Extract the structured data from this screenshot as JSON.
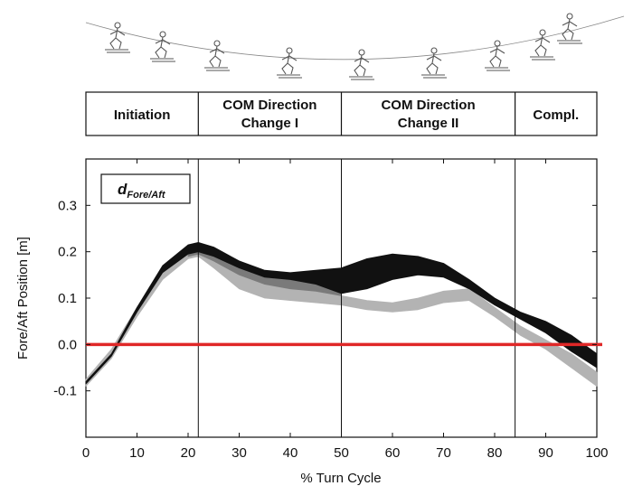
{
  "chart_data": {
    "type": "area",
    "xlabel": "% Turn Cycle",
    "ylabel": "Fore/Aft Position [m]",
    "xlim": [
      0,
      100
    ],
    "ylim": [
      -0.2,
      0.4
    ],
    "x_ticks": [
      0,
      10,
      20,
      30,
      40,
      50,
      60,
      70,
      80,
      90,
      100
    ],
    "y_ticks": [
      -0.1,
      0.0,
      0.1,
      0.2,
      0.3
    ],
    "x_tick_labels": [
      "0",
      "10",
      "20",
      "30",
      "40",
      "50",
      "60",
      "70",
      "80",
      "90",
      "100"
    ],
    "y_tick_labels": [
      "-0.1",
      "0.0",
      "0.1",
      "0.2",
      "0.3"
    ],
    "annotation": {
      "main": "d",
      "sub": "Fore/Aft"
    },
    "phases": [
      {
        "lines": [
          "Initiation"
        ],
        "start": 0,
        "end": 22
      },
      {
        "lines": [
          "COM Direction",
          "Change I"
        ],
        "start": 22,
        "end": 50
      },
      {
        "lines": [
          "COM Direction",
          "Change II"
        ],
        "start": 50,
        "end": 84
      },
      {
        "lines": [
          "Compl."
        ],
        "start": 84,
        "end": 100
      }
    ],
    "phase_boundaries": [
      22,
      50,
      84
    ],
    "zero_line_color": "#e02828",
    "series": [
      {
        "color": "#b3b3b3",
        "x": [
          0,
          5,
          10,
          15,
          20,
          22,
          25,
          30,
          35,
          40,
          45,
          50,
          55,
          60,
          65,
          70,
          75,
          80,
          85,
          90,
          95,
          100
        ],
        "upper": [
          -0.075,
          -0.01,
          0.08,
          0.155,
          0.2,
          0.205,
          0.185,
          0.155,
          0.13,
          0.12,
          0.115,
          0.105,
          0.095,
          0.09,
          0.1,
          0.115,
          0.12,
          0.08,
          0.04,
          0.01,
          -0.02,
          -0.06
        ],
        "lower": [
          -0.09,
          -0.03,
          0.06,
          0.14,
          0.185,
          0.19,
          0.165,
          0.12,
          0.1,
          0.095,
          0.09,
          0.085,
          0.075,
          0.07,
          0.075,
          0.09,
          0.095,
          0.06,
          0.02,
          -0.01,
          -0.05,
          -0.09
        ]
      },
      {
        "color": "#7a7a7a",
        "x": [
          20,
          22,
          25,
          30,
          35,
          40,
          45,
          50
        ],
        "upper": [
          0.205,
          0.21,
          0.2,
          0.175,
          0.155,
          0.145,
          0.14,
          0.13
        ],
        "lower": [
          0.19,
          0.195,
          0.18,
          0.15,
          0.13,
          0.12,
          0.115,
          0.105
        ]
      },
      {
        "color": "#111111",
        "x": [
          0,
          5,
          10,
          15,
          20,
          22,
          25,
          30,
          35,
          40,
          45,
          50,
          55,
          60,
          65,
          70,
          75,
          80,
          85,
          90,
          95,
          100
        ],
        "upper": [
          -0.08,
          -0.02,
          0.08,
          0.17,
          0.215,
          0.22,
          0.21,
          0.18,
          0.16,
          0.155,
          0.16,
          0.165,
          0.185,
          0.195,
          0.19,
          0.175,
          0.14,
          0.1,
          0.07,
          0.05,
          0.02,
          -0.02
        ],
        "lower": [
          -0.085,
          -0.025,
          0.07,
          0.155,
          0.195,
          0.2,
          0.19,
          0.165,
          0.145,
          0.14,
          0.13,
          0.11,
          0.12,
          0.14,
          0.15,
          0.145,
          0.12,
          0.085,
          0.055,
          0.025,
          -0.015,
          -0.05
        ]
      }
    ]
  }
}
